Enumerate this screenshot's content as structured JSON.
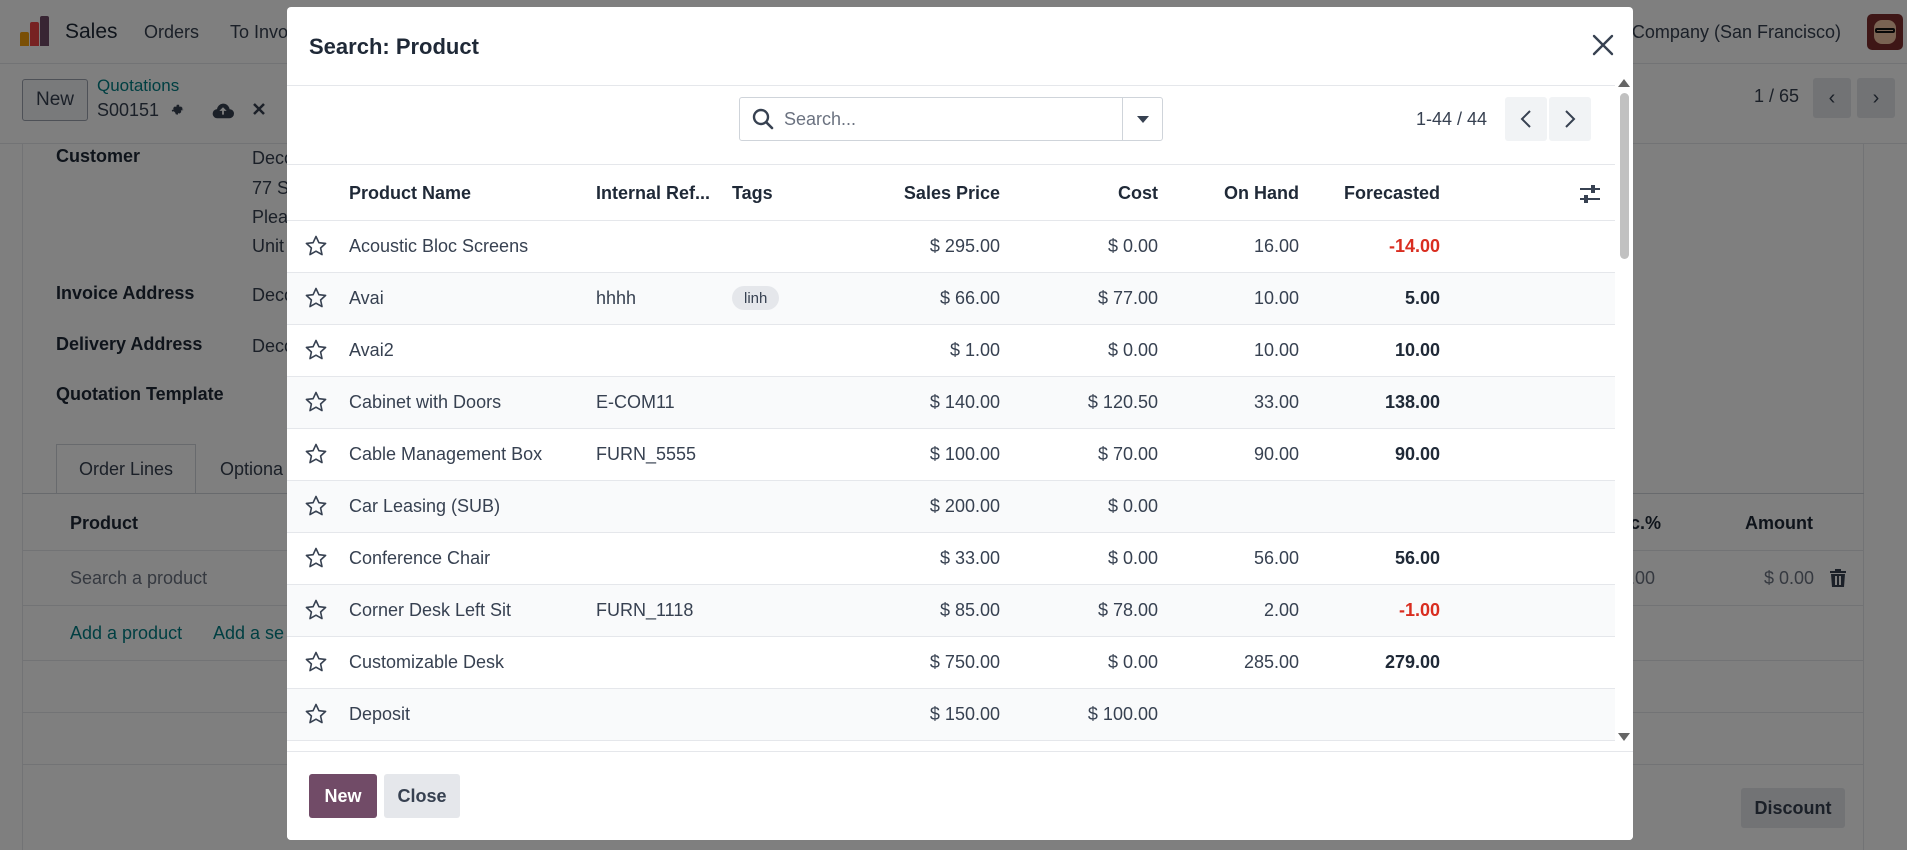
{
  "app": {
    "name": "Sales",
    "nav": [
      "Orders",
      "To Invoice"
    ],
    "company": "Company (San Francisco)"
  },
  "control_panel": {
    "new_label": "New",
    "breadcrumb": "Quotations",
    "record": "S00151",
    "pager": "1 / 65"
  },
  "form": {
    "customer_label": "Customer",
    "customer_lines": [
      "Deco",
      "77 S",
      "Plea",
      "Unit"
    ],
    "invoice_address_label": "Invoice Address",
    "invoice_address_value": "Deco",
    "delivery_address_label": "Delivery Address",
    "delivery_address_value": "Deco",
    "quotation_template_label": "Quotation Template",
    "tabs": [
      "Order Lines",
      "Optiona"
    ],
    "columns": {
      "product": "Product",
      "disc": "c.%",
      "amount": "Amount"
    },
    "product_placeholder": "Search a product",
    "line_disc": ".00",
    "line_amount": "$ 0.00",
    "add_product": "Add a product",
    "add_section": "Add a se",
    "discount_label": "Discount"
  },
  "modal": {
    "title": "Search: Product",
    "search_placeholder": "Search...",
    "pager_value": "1-44 / 44",
    "columns": {
      "name": "Product Name",
      "internal_ref": "Internal Ref...",
      "tags": "Tags",
      "sales_price": "Sales Price",
      "cost": "Cost",
      "on_hand": "On Hand",
      "forecasted": "Forecasted"
    },
    "rows": [
      {
        "name": "Acoustic Bloc Screens",
        "ref": "",
        "tag": "",
        "price": "$ 295.00",
        "cost": "$ 0.00",
        "on_hand": "16.00",
        "forecasted": "-14.00",
        "negative": true
      },
      {
        "name": "Avai",
        "ref": "hhhh",
        "tag": "linh",
        "price": "$ 66.00",
        "cost": "$ 77.00",
        "on_hand": "10.00",
        "forecasted": "5.00",
        "negative": false
      },
      {
        "name": "Avai2",
        "ref": "",
        "tag": "",
        "price": "$ 1.00",
        "cost": "$ 0.00",
        "on_hand": "10.00",
        "forecasted": "10.00",
        "negative": false
      },
      {
        "name": "Cabinet with Doors",
        "ref": "E-COM11",
        "tag": "",
        "price": "$ 140.00",
        "cost": "$ 120.50",
        "on_hand": "33.00",
        "forecasted": "138.00",
        "negative": false
      },
      {
        "name": "Cable Management Box",
        "ref": "FURN_5555",
        "tag": "",
        "price": "$ 100.00",
        "cost": "$ 70.00",
        "on_hand": "90.00",
        "forecasted": "90.00",
        "negative": false
      },
      {
        "name": "Car Leasing (SUB)",
        "ref": "",
        "tag": "",
        "price": "$ 200.00",
        "cost": "$ 0.00",
        "on_hand": "",
        "forecasted": "",
        "negative": false
      },
      {
        "name": "Conference Chair",
        "ref": "",
        "tag": "",
        "price": "$ 33.00",
        "cost": "$ 0.00",
        "on_hand": "56.00",
        "forecasted": "56.00",
        "negative": false
      },
      {
        "name": "Corner Desk Left Sit",
        "ref": "FURN_1118",
        "tag": "",
        "price": "$ 85.00",
        "cost": "$ 78.00",
        "on_hand": "2.00",
        "forecasted": "-1.00",
        "negative": true
      },
      {
        "name": "Customizable Desk",
        "ref": "",
        "tag": "",
        "price": "$ 750.00",
        "cost": "$ 0.00",
        "on_hand": "285.00",
        "forecasted": "279.00",
        "negative": false
      },
      {
        "name": "Deposit",
        "ref": "",
        "tag": "",
        "price": "$ 150.00",
        "cost": "$ 100.00",
        "on_hand": "",
        "forecasted": "",
        "negative": false
      }
    ],
    "footer": {
      "new_label": "New",
      "close_label": "Close"
    }
  },
  "colors": {
    "primary": "#714b67",
    "link": "#017e84",
    "negative": "#d92d20"
  }
}
